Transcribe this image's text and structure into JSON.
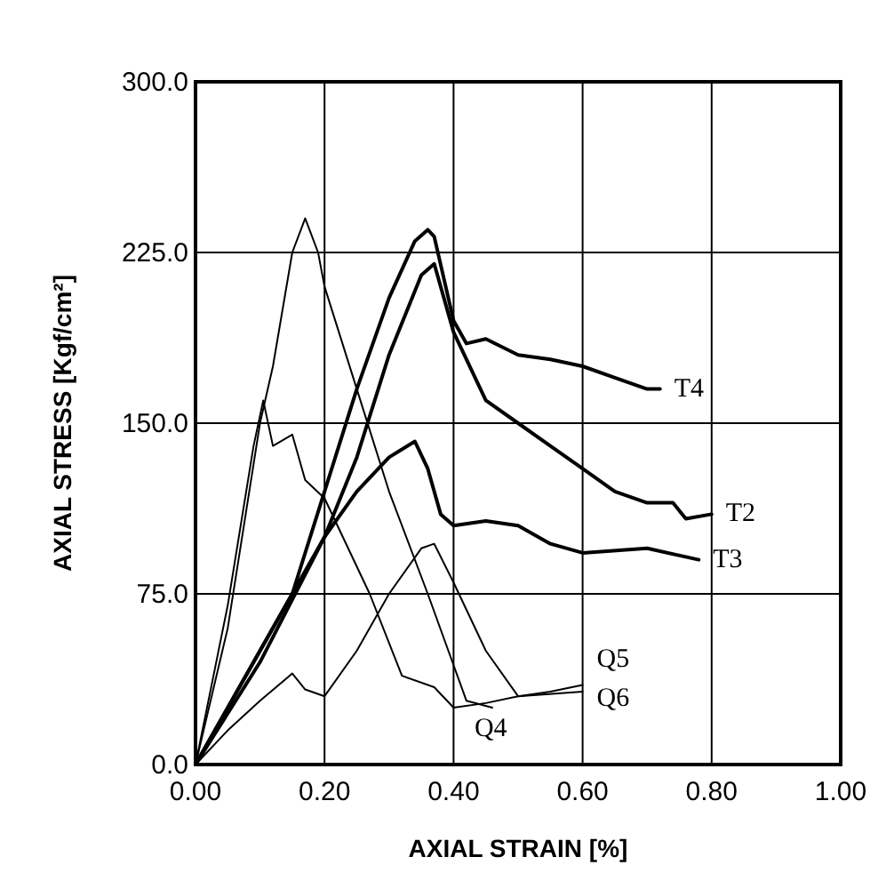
{
  "chart_data": {
    "type": "line",
    "xlabel": "AXIAL STRAIN  [%]",
    "ylabel": "AXIAL STRESS  [Kgf/cm²]",
    "xlim": [
      0,
      1
    ],
    "ylim": [
      0,
      300
    ],
    "xticks": [
      {
        "value": 0,
        "label": "0.00"
      },
      {
        "value": 0.2,
        "label": "0.20"
      },
      {
        "value": 0.4,
        "label": "0.40"
      },
      {
        "value": 0.6,
        "label": "0.60"
      },
      {
        "value": 0.8,
        "label": "0.80"
      },
      {
        "value": 1,
        "label": "1.00"
      }
    ],
    "yticks": [
      {
        "value": 0,
        "label": "0.0"
      },
      {
        "value": 75,
        "label": "75.0"
      },
      {
        "value": 150,
        "label": "150.0"
      },
      {
        "value": 225,
        "label": "225.0"
      },
      {
        "value": 300,
        "label": "300.0"
      }
    ],
    "grid": true,
    "marker": "none",
    "line_style": "solid",
    "series": [
      {
        "name": "T4",
        "color": "#000000",
        "x": [
          0,
          0.1,
          0.15,
          0.2,
          0.25,
          0.3,
          0.34,
          0.36,
          0.37,
          0.4,
          0.42,
          0.45,
          0.5,
          0.55,
          0.6,
          0.65,
          0.7,
          0.72
        ],
        "values": [
          0,
          50,
          75,
          120,
          165,
          205,
          230,
          235,
          232,
          195,
          185,
          187,
          180,
          178,
          175,
          170,
          165,
          165
        ]
      },
      {
        "name": "T2",
        "color": "#000000",
        "x": [
          0,
          0.1,
          0.2,
          0.25,
          0.3,
          0.35,
          0.37,
          0.4,
          0.45,
          0.5,
          0.55,
          0.6,
          0.65,
          0.7,
          0.74,
          0.76,
          0.8
        ],
        "values": [
          0,
          45,
          100,
          135,
          180,
          215,
          220,
          190,
          160,
          150,
          140,
          130,
          120,
          115,
          115,
          108,
          110
        ]
      },
      {
        "name": "T3",
        "color": "#000000",
        "x": [
          0,
          0.1,
          0.2,
          0.25,
          0.3,
          0.34,
          0.36,
          0.38,
          0.4,
          0.45,
          0.5,
          0.55,
          0.6,
          0.7,
          0.78
        ],
        "values": [
          0,
          50,
          100,
          120,
          135,
          142,
          130,
          110,
          105,
          107,
          105,
          97,
          93,
          95,
          90
        ]
      },
      {
        "name": "Q4",
        "color": "#000000",
        "x": [
          0,
          0.05,
          0.1,
          0.12,
          0.15,
          0.17,
          0.19,
          0.2,
          0.25,
          0.3,
          0.36,
          0.42,
          0.46
        ],
        "values": [
          0,
          60,
          150,
          175,
          225,
          240,
          225,
          210,
          165,
          120,
          75,
          28,
          25
        ]
      },
      {
        "name": "Q5",
        "color": "#000000",
        "x": [
          0,
          0.05,
          0.1,
          0.15,
          0.17,
          0.2,
          0.25,
          0.3,
          0.35,
          0.37,
          0.4,
          0.45,
          0.5,
          0.55,
          0.6
        ],
        "values": [
          0,
          15,
          28,
          40,
          33,
          30,
          50,
          75,
          95,
          97,
          80,
          50,
          30,
          32,
          35
        ]
      },
      {
        "name": "Q6",
        "color": "#000000",
        "x": [
          0,
          0.05,
          0.09,
          0.105,
          0.12,
          0.15,
          0.17,
          0.2,
          0.27,
          0.32,
          0.37,
          0.4,
          0.45,
          0.5,
          0.6
        ],
        "values": [
          0,
          70,
          140,
          160,
          140,
          145,
          125,
          117,
          75,
          39,
          34,
          25,
          27,
          30,
          32
        ]
      }
    ]
  }
}
